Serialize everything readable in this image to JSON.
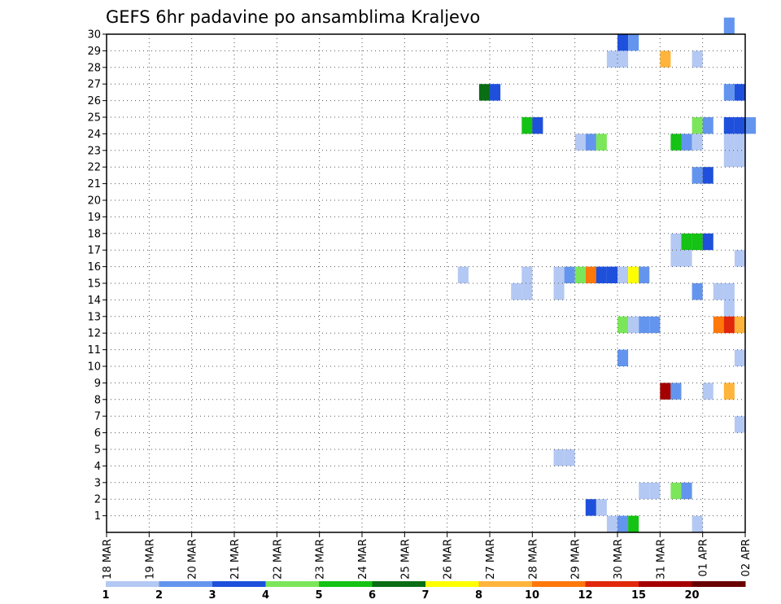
{
  "chart_data": {
    "type": "heatmap",
    "title": "GEFS 6hr padavine po ansamblima Kraljevo",
    "xlabel": "",
    "ylabel": "",
    "x_tick_labels": [
      "18 MAR",
      "19 MAR",
      "20 MAR",
      "21 MAR",
      "22 MAR",
      "23 MAR",
      "24 MAR",
      "25 MAR",
      "26 MAR",
      "27 MAR",
      "28 MAR",
      "29 MAR",
      "30 MAR",
      "31 MAR",
      "01 APR",
      "02 APR"
    ],
    "y_tick_labels": [
      "1",
      "2",
      "3",
      "4",
      "5",
      "6",
      "7",
      "8",
      "9",
      "10",
      "11",
      "12",
      "13",
      "14",
      "15",
      "16",
      "17",
      "18",
      "19",
      "20",
      "21",
      "22",
      "23",
      "24",
      "25",
      "26",
      "27",
      "28",
      "29",
      "30"
    ],
    "x_range": [
      "18 MAR 00Z",
      "02 APR 00Z"
    ],
    "time_step_hours": 6,
    "y_range": [
      0,
      30
    ],
    "grid": true,
    "colorbar": {
      "labels": [
        "1",
        "2",
        "3",
        "4",
        "5",
        "6",
        "7",
        "8",
        "10",
        "12",
        "15",
        "20"
      ],
      "colors": [
        "#b4c8f4",
        "#6495ee",
        "#1e50dc",
        "#7ce65a",
        "#14c314",
        "#096e14",
        "#ffff00",
        "#ffb43c",
        "#ff780a",
        "#e1280a",
        "#a50000",
        "#690000"
      ]
    },
    "cells": [
      {
        "d": "2026-04-01T12",
        "m": 30,
        "v": 2.5
      },
      {
        "d": "2026-03-30T00",
        "m": 29,
        "v": 3.5
      },
      {
        "d": "2026-03-30T06",
        "m": 29,
        "v": 2.5
      },
      {
        "d": "2026-03-29T18",
        "m": 28,
        "v": 1.5
      },
      {
        "d": "2026-03-30T00",
        "m": 28,
        "v": 1.5
      },
      {
        "d": "2026-03-31T00",
        "m": 28,
        "v": 9
      },
      {
        "d": "2026-03-31T18",
        "m": 28,
        "v": 1.5
      },
      {
        "d": "2026-03-26T18",
        "m": 26,
        "v": 6.5
      },
      {
        "d": "2026-03-27T00",
        "m": 26,
        "v": 3.5
      },
      {
        "d": "2026-04-01T12",
        "m": 26,
        "v": 2.5
      },
      {
        "d": "2026-04-01T18",
        "m": 26,
        "v": 3.5
      },
      {
        "d": "2026-03-27T18",
        "m": 24,
        "v": 5.5
      },
      {
        "d": "2026-03-28T00",
        "m": 24,
        "v": 3.5
      },
      {
        "d": "2026-03-31T18",
        "m": 24,
        "v": 4.5
      },
      {
        "d": "2026-04-01T00",
        "m": 24,
        "v": 2.5
      },
      {
        "d": "2026-04-01T12",
        "m": 24,
        "v": 3.5
      },
      {
        "d": "2026-04-01T18",
        "m": 24,
        "v": 3.5
      },
      {
        "d": "2026-04-02T00",
        "m": 24,
        "v": 2.5
      },
      {
        "d": "2026-03-29T00",
        "m": 23,
        "v": 1.5
      },
      {
        "d": "2026-03-29T06",
        "m": 23,
        "v": 2.5
      },
      {
        "d": "2026-03-29T12",
        "m": 23,
        "v": 4.5
      },
      {
        "d": "2026-03-31T06",
        "m": 23,
        "v": 5.5
      },
      {
        "d": "2026-03-31T12",
        "m": 23,
        "v": 2.5
      },
      {
        "d": "2026-03-31T18",
        "m": 23,
        "v": 1.5
      },
      {
        "d": "2026-04-01T12",
        "m": 23,
        "v": 1.5
      },
      {
        "d": "2026-04-01T18",
        "m": 23,
        "v": 1.5
      },
      {
        "d": "2026-04-01T12",
        "m": 22,
        "v": 1.5
      },
      {
        "d": "2026-04-01T18",
        "m": 22,
        "v": 1.5
      },
      {
        "d": "2026-03-31T18",
        "m": 21,
        "v": 2.5
      },
      {
        "d": "2026-04-01T00",
        "m": 21,
        "v": 3.5
      },
      {
        "d": "2026-03-31T06",
        "m": 17,
        "v": 1.5
      },
      {
        "d": "2026-03-31T12",
        "m": 17,
        "v": 5.5
      },
      {
        "d": "2026-03-31T18",
        "m": 17,
        "v": 5.5
      },
      {
        "d": "2026-04-01T00",
        "m": 17,
        "v": 3.5
      },
      {
        "d": "2026-03-31T06",
        "m": 16,
        "v": 1.5
      },
      {
        "d": "2026-03-31T12",
        "m": 16,
        "v": 1.5
      },
      {
        "d": "2026-04-01T18",
        "m": 16,
        "v": 1.5
      },
      {
        "d": "2026-03-26T06",
        "m": 15,
        "v": 1.5
      },
      {
        "d": "2026-03-27T18",
        "m": 15,
        "v": 1.5
      },
      {
        "d": "2026-03-28T12",
        "m": 15,
        "v": 1.5
      },
      {
        "d": "2026-03-28T18",
        "m": 15,
        "v": 2.5
      },
      {
        "d": "2026-03-29T00",
        "m": 15,
        "v": 4.5
      },
      {
        "d": "2026-03-29T06",
        "m": 15,
        "v": 11
      },
      {
        "d": "2026-03-29T12",
        "m": 15,
        "v": 3.5
      },
      {
        "d": "2026-03-29T18",
        "m": 15,
        "v": 3.5
      },
      {
        "d": "2026-03-30T00",
        "m": 15,
        "v": 1.5
      },
      {
        "d": "2026-03-30T06",
        "m": 15,
        "v": 7.5
      },
      {
        "d": "2026-03-30T12",
        "m": 15,
        "v": 2.5
      },
      {
        "d": "2026-03-27T12",
        "m": 14,
        "v": 1.5
      },
      {
        "d": "2026-03-27T18",
        "m": 14,
        "v": 1.5
      },
      {
        "d": "2026-03-28T12",
        "m": 14,
        "v": 1.5
      },
      {
        "d": "2026-03-31T18",
        "m": 14,
        "v": 2.5
      },
      {
        "d": "2026-04-01T06",
        "m": 14,
        "v": 1.5
      },
      {
        "d": "2026-04-01T12",
        "m": 14,
        "v": 1.5
      },
      {
        "d": "2026-04-01T12",
        "m": 13,
        "v": 1.5
      },
      {
        "d": "2026-03-30T00",
        "m": 12,
        "v": 4.5
      },
      {
        "d": "2026-03-30T06",
        "m": 12,
        "v": 1.5
      },
      {
        "d": "2026-03-30T12",
        "m": 12,
        "v": 2.5
      },
      {
        "d": "2026-03-30T18",
        "m": 12,
        "v": 2.5
      },
      {
        "d": "2026-04-01T06",
        "m": 12,
        "v": 11
      },
      {
        "d": "2026-04-01T12",
        "m": 12,
        "v": 13.5
      },
      {
        "d": "2026-04-01T18",
        "m": 12,
        "v": 9
      },
      {
        "d": "2026-03-30T00",
        "m": 10,
        "v": 2.5
      },
      {
        "d": "2026-04-01T18",
        "m": 10,
        "v": 1.5
      },
      {
        "d": "2026-03-31T00",
        "m": 8,
        "v": 17.5
      },
      {
        "d": "2026-03-31T06",
        "m": 8,
        "v": 2.5
      },
      {
        "d": "2026-04-01T00",
        "m": 8,
        "v": 1.5
      },
      {
        "d": "2026-04-01T12",
        "m": 8,
        "v": 9
      },
      {
        "d": "2026-04-01T18",
        "m": 6,
        "v": 1.5
      },
      {
        "d": "2026-03-28T12",
        "m": 4,
        "v": 1.5
      },
      {
        "d": "2026-03-28T18",
        "m": 4,
        "v": 1.5
      },
      {
        "d": "2026-03-30T12",
        "m": 2,
        "v": 1.5
      },
      {
        "d": "2026-03-30T18",
        "m": 2,
        "v": 1.5
      },
      {
        "d": "2026-03-31T06",
        "m": 2,
        "v": 4.5
      },
      {
        "d": "2026-03-31T12",
        "m": 2,
        "v": 2.5
      },
      {
        "d": "2026-03-29T06",
        "m": 1,
        "v": 3.5
      },
      {
        "d": "2026-03-29T12",
        "m": 1,
        "v": 1.5
      },
      {
        "d": "2026-03-29T18",
        "m": 0,
        "v": 1.5
      },
      {
        "d": "2026-03-30T00",
        "m": 0,
        "v": 2.5
      },
      {
        "d": "2026-03-30T06",
        "m": 0,
        "v": 5.5
      },
      {
        "d": "2026-03-31T18",
        "m": 0,
        "v": 1.5
      }
    ]
  }
}
